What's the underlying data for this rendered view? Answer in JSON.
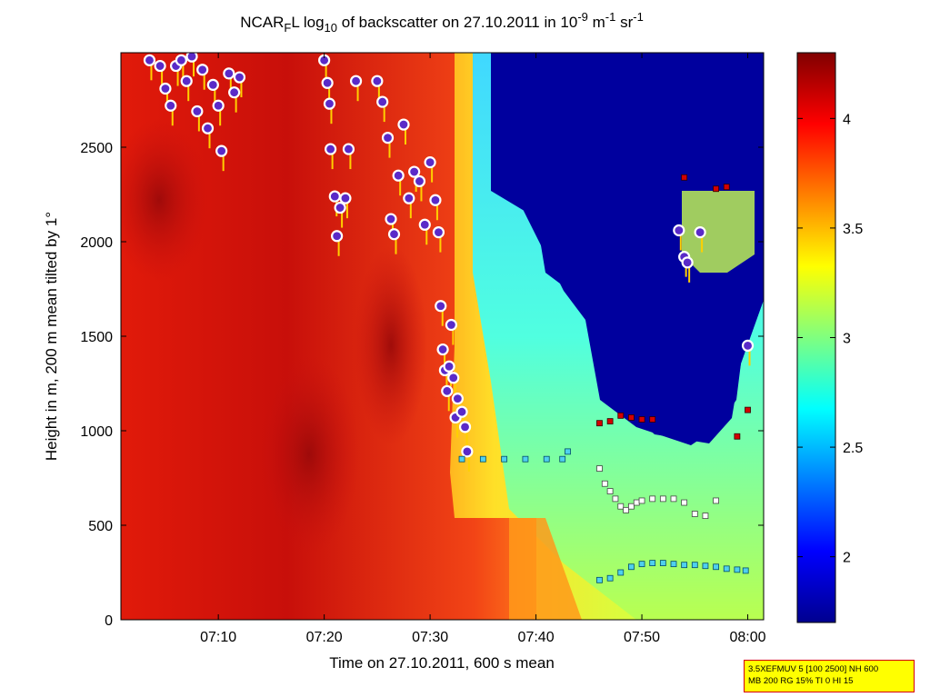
{
  "title": {
    "prefix": "NCAR",
    "sub": "F",
    "middle": "L log",
    "sub2": "10",
    "main": " of backscatter on 27.10.2011 in 10",
    "exp1": "-9",
    "unit1": " m",
    "exp2": "-1",
    "unit2": " sr",
    "exp3": "-1"
  },
  "info_box": {
    "line1": "3.5XEFMUV 5 [100 2500] NH 600",
    "line2": "MB 200 RG 15% TI 0 HI 15"
  },
  "colorbar": {
    "ticks": [
      "2",
      "2.5",
      "3",
      "3.5",
      "4"
    ],
    "tick_values": [
      2,
      2.5,
      3,
      3.5,
      4
    ],
    "range": [
      1.7,
      4.3
    ],
    "colormap": "jet"
  },
  "chart_data": {
    "type": "heatmap",
    "xlabel": "Time on 27.10.2011, 600 s mean",
    "ylabel": "Height in m, 200 m mean tilted by 1°",
    "x_ticks": [
      "07:10",
      "07:20",
      "07:30",
      "07:40",
      "07:50",
      "08:00"
    ],
    "x_tick_values": [
      10,
      20,
      30,
      40,
      50,
      60
    ],
    "x_unit_note": "minutes after 07:00",
    "xlim": [
      0.8,
      61.5
    ],
    "y_ticks": [
      "0",
      "500",
      "1000",
      "1500",
      "2000",
      "2500"
    ],
    "y_tick_values": [
      0,
      500,
      1000,
      1500,
      2000,
      2500
    ],
    "ylim": [
      0,
      3000
    ],
    "grid": false,
    "zones": {
      "high_red_boundary_top": [
        [
          0.8,
          3000
        ],
        [
          33,
          3000
        ],
        [
          33,
          1000
        ],
        [
          30,
          1000
        ]
      ],
      "low_blue_region": "upper right, from ~07:35 to ~08:01 above ~1000-1600 m"
    },
    "cloud_base_markers": [
      {
        "t": 3.5,
        "h": 2960
      },
      {
        "t": 4.5,
        "h": 2930
      },
      {
        "t": 5.0,
        "h": 2810
      },
      {
        "t": 5.5,
        "h": 2720
      },
      {
        "t": 6.0,
        "h": 2930
      },
      {
        "t": 6.5,
        "h": 2960
      },
      {
        "t": 7.0,
        "h": 2850
      },
      {
        "t": 7.5,
        "h": 2980
      },
      {
        "t": 8.0,
        "h": 2690
      },
      {
        "t": 8.5,
        "h": 2910
      },
      {
        "t": 9.0,
        "h": 2600
      },
      {
        "t": 9.5,
        "h": 2830
      },
      {
        "t": 10.0,
        "h": 2720
      },
      {
        "t": 10.3,
        "h": 2480
      },
      {
        "t": 11.0,
        "h": 2890
      },
      {
        "t": 11.5,
        "h": 2790
      },
      {
        "t": 12.0,
        "h": 2870
      },
      {
        "t": 20.0,
        "h": 2960
      },
      {
        "t": 20.3,
        "h": 2840
      },
      {
        "t": 20.5,
        "h": 2730
      },
      {
        "t": 20.6,
        "h": 2490
      },
      {
        "t": 21.0,
        "h": 2240
      },
      {
        "t": 21.2,
        "h": 2030
      },
      {
        "t": 21.5,
        "h": 2180
      },
      {
        "t": 22.0,
        "h": 2230
      },
      {
        "t": 22.3,
        "h": 2490
      },
      {
        "t": 23.0,
        "h": 2850
      },
      {
        "t": 25.0,
        "h": 2850
      },
      {
        "t": 25.5,
        "h": 2740
      },
      {
        "t": 26.0,
        "h": 2550
      },
      {
        "t": 26.3,
        "h": 2120
      },
      {
        "t": 26.6,
        "h": 2040
      },
      {
        "t": 27.0,
        "h": 2350
      },
      {
        "t": 27.5,
        "h": 2620
      },
      {
        "t": 28.0,
        "h": 2230
      },
      {
        "t": 28.5,
        "h": 2370
      },
      {
        "t": 29.0,
        "h": 2320
      },
      {
        "t": 29.5,
        "h": 2090
      },
      {
        "t": 30.0,
        "h": 2420
      },
      {
        "t": 30.5,
        "h": 2220
      },
      {
        "t": 30.8,
        "h": 2050
      },
      {
        "t": 31.0,
        "h": 1660
      },
      {
        "t": 31.2,
        "h": 1430
      },
      {
        "t": 31.4,
        "h": 1320
      },
      {
        "t": 31.6,
        "h": 1210
      },
      {
        "t": 31.8,
        "h": 1340
      },
      {
        "t": 32.0,
        "h": 1560
      },
      {
        "t": 32.2,
        "h": 1280
      },
      {
        "t": 32.4,
        "h": 1070
      },
      {
        "t": 32.6,
        "h": 1170
      },
      {
        "t": 33.0,
        "h": 1100
      },
      {
        "t": 33.3,
        "h": 1020
      },
      {
        "t": 33.5,
        "h": 890
      },
      {
        "t": 53.5,
        "h": 2060
      },
      {
        "t": 54.0,
        "h": 1920
      },
      {
        "t": 54.3,
        "h": 1890
      },
      {
        "t": 55.5,
        "h": 2050
      },
      {
        "t": 60.0,
        "h": 1450
      }
    ],
    "layer_top_points": [
      {
        "t": 46.0,
        "h": 1040
      },
      {
        "t": 47.0,
        "h": 1050
      },
      {
        "t": 48.0,
        "h": 1080
      },
      {
        "t": 49.0,
        "h": 1070
      },
      {
        "t": 50.0,
        "h": 1060
      },
      {
        "t": 51.0,
        "h": 1060
      },
      {
        "t": 54.0,
        "h": 2340
      },
      {
        "t": 57.0,
        "h": 2280
      },
      {
        "t": 58.0,
        "h": 2290
      },
      {
        "t": 59.0,
        "h": 970
      },
      {
        "t": 60.0,
        "h": 1110
      }
    ],
    "aerosol_layer_points": [
      {
        "t": 46.0,
        "h": 800
      },
      {
        "t": 46.5,
        "h": 720
      },
      {
        "t": 47.0,
        "h": 680
      },
      {
        "t": 47.5,
        "h": 640
      },
      {
        "t": 48.0,
        "h": 600
      },
      {
        "t": 48.5,
        "h": 580
      },
      {
        "t": 49.0,
        "h": 600
      },
      {
        "t": 49.5,
        "h": 620
      },
      {
        "t": 50.0,
        "h": 630
      },
      {
        "t": 51.0,
        "h": 640
      },
      {
        "t": 52.0,
        "h": 640
      },
      {
        "t": 53.0,
        "h": 640
      },
      {
        "t": 54.0,
        "h": 620
      },
      {
        "t": 55.0,
        "h": 560
      },
      {
        "t": 56.0,
        "h": 550
      },
      {
        "t": 57.0,
        "h": 630
      }
    ],
    "mixing_layer_low": [
      {
        "t": 46.0,
        "h": 210
      },
      {
        "t": 47.0,
        "h": 220
      },
      {
        "t": 48.0,
        "h": 250
      },
      {
        "t": 49.0,
        "h": 280
      },
      {
        "t": 50.0,
        "h": 295
      },
      {
        "t": 51.0,
        "h": 300
      },
      {
        "t": 52.0,
        "h": 300
      },
      {
        "t": 53.0,
        "h": 295
      },
      {
        "t": 54.0,
        "h": 290
      },
      {
        "t": 55.0,
        "h": 290
      },
      {
        "t": 56.0,
        "h": 285
      },
      {
        "t": 57.0,
        "h": 280
      },
      {
        "t": 58.0,
        "h": 270
      },
      {
        "t": 59.0,
        "h": 265
      },
      {
        "t": 59.8,
        "h": 260
      }
    ],
    "mixing_layer_mid": [
      {
        "t": 33.0,
        "h": 850
      },
      {
        "t": 35.0,
        "h": 850
      },
      {
        "t": 37.0,
        "h": 850
      },
      {
        "t": 39.0,
        "h": 850
      },
      {
        "t": 41.0,
        "h": 850
      },
      {
        "t": 42.5,
        "h": 850
      },
      {
        "t": 43.0,
        "h": 890
      }
    ]
  }
}
